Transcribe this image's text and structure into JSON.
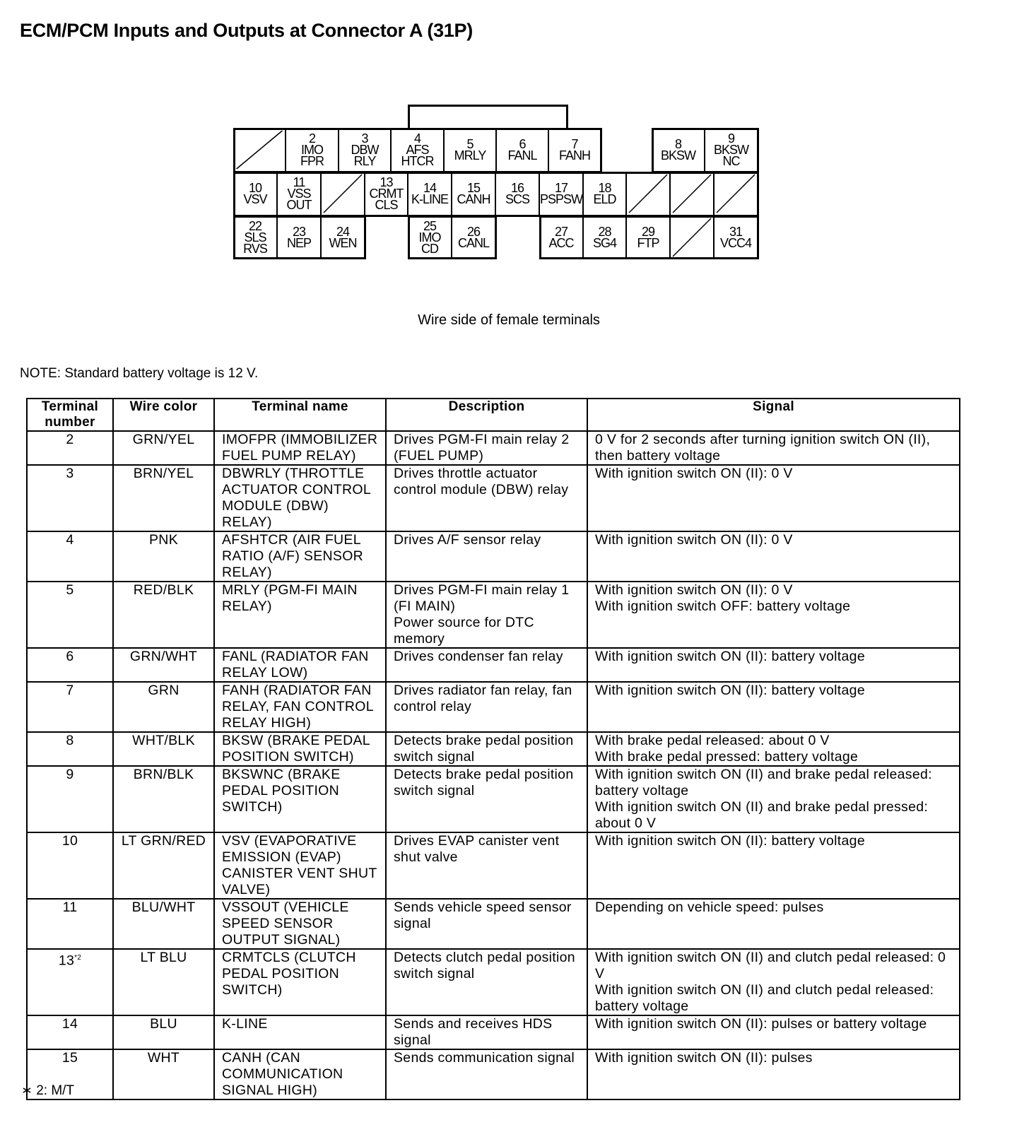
{
  "title": "ECM/PCM Inputs and Outputs at Connector A (31P)",
  "connector": {
    "caption": "Wire side of female terminals",
    "cells": [
      {
        "num": "",
        "lines": [],
        "blank": true
      },
      {
        "num": "2",
        "lines": [
          "IMO",
          "FPR"
        ]
      },
      {
        "num": "3",
        "lines": [
          "DBW",
          "RLY"
        ]
      },
      {
        "num": "4",
        "lines": [
          "AFS",
          "HTCR"
        ]
      },
      {
        "num": "5",
        "lines": [
          "MRLY"
        ]
      },
      {
        "num": "6",
        "lines": [
          "FANL"
        ]
      },
      {
        "num": "7",
        "lines": [
          "FANH"
        ]
      },
      {
        "num": "8",
        "lines": [
          "BKSW"
        ]
      },
      {
        "num": "9",
        "lines": [
          "BKSW",
          "NC"
        ]
      },
      {
        "num": "10",
        "lines": [
          "VSV"
        ]
      },
      {
        "num": "11",
        "lines": [
          "VSS",
          "OUT"
        ]
      },
      {
        "num": "",
        "lines": [],
        "blank": true
      },
      {
        "num": "13",
        "lines": [
          "CRMT",
          "CLS"
        ]
      },
      {
        "num": "14",
        "lines": [
          "K-LINE"
        ]
      },
      {
        "num": "15",
        "lines": [
          "CANH"
        ]
      },
      {
        "num": "16",
        "lines": [
          "SCS"
        ]
      },
      {
        "num": "17",
        "lines": [
          "PSPSW"
        ]
      },
      {
        "num": "18",
        "lines": [
          "ELD"
        ]
      },
      {
        "num": "",
        "lines": [],
        "blank": true
      },
      {
        "num": "",
        "lines": [],
        "blank": true
      },
      {
        "num": "",
        "lines": [],
        "blank": true
      },
      {
        "num": "22",
        "lines": [
          "SLS",
          "RVS"
        ]
      },
      {
        "num": "23",
        "lines": [
          "NEP"
        ]
      },
      {
        "num": "24",
        "lines": [
          "WEN"
        ]
      },
      {
        "num": "25",
        "lines": [
          "IMO",
          "CD"
        ]
      },
      {
        "num": "26",
        "lines": [
          "CANL"
        ]
      },
      {
        "num": "27",
        "lines": [
          "ACC"
        ]
      },
      {
        "num": "28",
        "lines": [
          "SG4"
        ]
      },
      {
        "num": "29",
        "lines": [
          "FTP"
        ]
      },
      {
        "num": "",
        "lines": [],
        "blank": true
      },
      {
        "num": "31",
        "lines": [
          "VCC4"
        ]
      }
    ]
  },
  "note": "NOTE: Standard battery voltage is 12 V.",
  "table": {
    "headers": [
      "Terminal number",
      "Wire color",
      "Terminal name",
      "Description",
      "Signal"
    ],
    "rows": [
      {
        "num": "2",
        "sup": "",
        "color": "GRN/YEL",
        "name": "IMOFPR (IMMOBILIZER FUEL PUMP RELAY)",
        "desc": "Drives PGM-FI main relay 2 (FUEL PUMP)",
        "signal": "0 V for 2 seconds after turning ignition switch ON (II), then battery voltage"
      },
      {
        "num": "3",
        "sup": "",
        "color": "BRN/YEL",
        "name": "DBWRLY (THROTTLE ACTUATOR CONTROL MODULE (DBW) RELAY)",
        "desc": "Drives throttle actuator control module (DBW) relay",
        "signal": "With ignition switch ON (II): 0 V"
      },
      {
        "num": "4",
        "sup": "",
        "color": "PNK",
        "name": "AFSHTCR (AIR FUEL RATIO (A/F) SENSOR RELAY)",
        "desc": "Drives A/F sensor relay",
        "signal": "With ignition switch ON (II): 0 V"
      },
      {
        "num": "5",
        "sup": "",
        "color": "RED/BLK",
        "name": "MRLY (PGM-FI MAIN RELAY)",
        "desc": "Drives PGM-FI main relay 1 (FI MAIN)\nPower source for DTC memory",
        "signal": "With ignition switch ON (II): 0 V\nWith ignition switch OFF: battery voltage"
      },
      {
        "num": "6",
        "sup": "",
        "color": "GRN/WHT",
        "name": "FANL (RADIATOR FAN RELAY LOW)",
        "desc": "Drives condenser fan relay",
        "signal": "With ignition switch ON (II): battery voltage"
      },
      {
        "num": "7",
        "sup": "",
        "color": "GRN",
        "name": "FANH (RADIATOR FAN RELAY, FAN CONTROL RELAY HIGH)",
        "desc": "Drives radiator fan relay, fan control relay",
        "signal": "With ignition switch ON (II): battery voltage"
      },
      {
        "num": "8",
        "sup": "",
        "color": "WHT/BLK",
        "name": "BKSW (BRAKE PEDAL POSITION SWITCH)",
        "desc": "Detects brake pedal position switch signal",
        "signal": "With brake pedal released: about 0 V\nWith brake pedal pressed: battery voltage"
      },
      {
        "num": "9",
        "sup": "",
        "color": "BRN/BLK",
        "name": "BKSWNC (BRAKE PEDAL POSITION SWITCH)",
        "desc": "Detects brake pedal position switch signal",
        "signal": "With ignition switch ON (II) and brake pedal released: battery voltage\nWith ignition switch ON (II) and brake pedal pressed: about 0 V"
      },
      {
        "num": "10",
        "sup": "",
        "color": "LT GRN/RED",
        "name": "VSV (EVAPORATIVE EMISSION (EVAP) CANISTER VENT SHUT VALVE)",
        "desc": "Drives EVAP canister vent shut valve",
        "signal": "With ignition switch ON (II): battery voltage"
      },
      {
        "num": "11",
        "sup": "",
        "color": "BLU/WHT",
        "name": "VSSOUT (VEHICLE SPEED SENSOR OUTPUT SIGNAL)",
        "desc": "Sends vehicle speed sensor signal",
        "signal": "Depending on vehicle speed: pulses"
      },
      {
        "num": "13",
        "sup": "*2",
        "color": "LT BLU",
        "name": "CRMTCLS (CLUTCH PEDAL POSITION SWITCH)",
        "desc": "Detects clutch pedal position switch signal",
        "signal": "With ignition switch ON (II) and clutch pedal released: 0 V\nWith ignition switch ON (II) and clutch pedal released: battery voltage"
      },
      {
        "num": "14",
        "sup": "",
        "color": "BLU",
        "name": "K-LINE",
        "desc": "Sends and receives HDS signal",
        "signal": "With ignition switch ON (II): pulses or battery voltage"
      },
      {
        "num": "15",
        "sup": "",
        "color": "WHT",
        "name": "CANH (CAN COMMUNICATION SIGNAL HIGH)",
        "desc": "Sends communication signal",
        "signal": "With ignition switch ON (II): pulses"
      }
    ]
  },
  "footnote": "∗ 2: M/T"
}
